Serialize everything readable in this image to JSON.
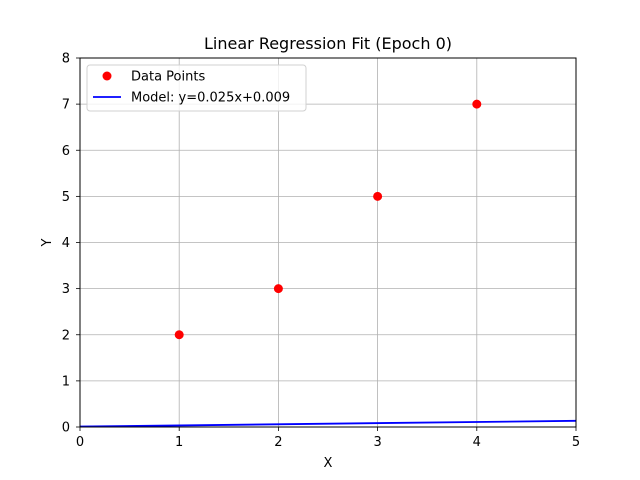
{
  "chart_data": {
    "type": "scatter",
    "title": "Linear Regression Fit (Epoch 0)",
    "xlabel": "X",
    "ylabel": "Y",
    "xlim": [
      0,
      5
    ],
    "ylim": [
      0,
      8
    ],
    "xticks": [
      0,
      1,
      2,
      3,
      4,
      5
    ],
    "yticks": [
      0,
      1,
      2,
      3,
      4,
      5,
      6,
      7,
      8
    ],
    "grid": true,
    "legend_position": "top-left",
    "series": [
      {
        "name": "Data Points",
        "kind": "scatter",
        "color": "#ff0000",
        "x": [
          1,
          2,
          3,
          4
        ],
        "y": [
          2,
          3,
          5,
          7
        ]
      },
      {
        "name": "Model: y=0.025x+0.009",
        "kind": "line",
        "color": "#0000ff",
        "x": [
          0,
          5
        ],
        "y": [
          0.009,
          0.134
        ]
      }
    ]
  }
}
